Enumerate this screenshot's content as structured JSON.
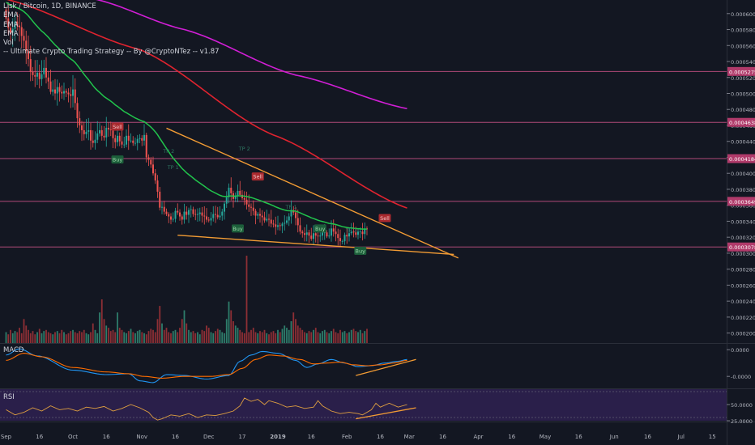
{
  "chart_data": {
    "type": "candlestick",
    "title": "Lisk / Bitcoin, 1D, BINANCE",
    "legend": [
      "EMA",
      "EMA",
      "EMA",
      "Vol",
      "-- Ultimate Crypto Trading Strategy -- By @CryptoNTez -- v1.87"
    ],
    "price_axis": {
      "ticks": [
        "0.0006000",
        "0.0005800",
        "0.0005600",
        "0.0005400",
        "0.0005200",
        "0.0005000",
        "0.0004800",
        "0.0004600",
        "0.0004400",
        "0.0004200",
        "0.0004000",
        "0.0003800",
        "0.0003600",
        "0.0003400",
        "0.0003200",
        "0.0003000",
        "0.0002800",
        "0.0002600",
        "0.0002400",
        "0.0002200",
        "0.0002000"
      ],
      "range": [
        0.0001875,
        0.000617
      ]
    },
    "horizontal_levels": [
      {
        "value": 0.0005275,
        "label": "0.0005275"
      },
      {
        "value": 0.0004638,
        "label": "0.0004638"
      },
      {
        "value": 0.0004184,
        "label": "0.0004184"
      },
      {
        "value": 0.0003649,
        "label": "0.0003649"
      },
      {
        "value": 0.0003078,
        "label": "0.0003078"
      }
    ],
    "x_axis": {
      "ticks": [
        "Sep",
        "16",
        "Oct",
        "16",
        "Nov",
        "16",
        "Dec",
        "17",
        "2019",
        "16",
        "Feb",
        "16",
        "Mar",
        "16",
        "Apr",
        "16",
        "May",
        "16",
        "Jun",
        "16",
        "Jul",
        "15"
      ],
      "tick_days": [
        0,
        15,
        30,
        45,
        61,
        76,
        91,
        106,
        122,
        137,
        153,
        168,
        181,
        196,
        212,
        227,
        242,
        257,
        273,
        288,
        303,
        317
      ]
    },
    "candles_close": [
      0.000594,
      0.000582,
      0.000576,
      0.000581,
      0.00059,
      0.000585,
      0.000583,
      0.000572,
      0.000566,
      0.000553,
      0.000543,
      0.000527,
      0.000523,
      0.000521,
      0.000526,
      0.000518,
      0.000524,
      0.000532,
      0.00052,
      0.000515,
      0.000502,
      0.000505,
      0.0005,
      0.000508,
      0.000502,
      0.0005,
      0.000503,
      0.000501,
      0.000499,
      0.000497,
      0.000505,
      0.000488,
      0.000469,
      0.00046,
      0.000454,
      0.000449,
      0.000452,
      0.000454,
      0.000441,
      0.000438,
      0.000442,
      0.00045,
      0.000454,
      0.000447,
      0.000445,
      0.000457,
      0.000455,
      0.000454,
      0.000444,
      0.000439,
      0.000447,
      0.00044,
      0.000436,
      0.000436,
      0.000447,
      0.000441,
      0.000441,
      0.000438,
      0.000438,
      0.000443,
      0.000444,
      0.000441,
      0.000448,
      0.00042,
      0.000417,
      0.000411,
      0.0004,
      0.000391,
      0.000377,
      0.000357,
      0.000358,
      0.000352,
      0.000349,
      0.000346,
      0.000342,
      0.000343,
      0.000353,
      0.000351,
      0.000346,
      0.000342,
      0.000352,
      0.000348,
      0.000354,
      0.000355,
      0.000349,
      0.000348,
      0.000349,
      0.000351,
      0.000347,
      0.000346,
      0.000342,
      0.000341,
      0.000344,
      0.000349,
      0.000348,
      0.000345,
      0.000347,
      0.000352,
      0.000362,
      0.00037,
      0.000382,
      0.000375,
      0.000368,
      0.000372,
      0.000378,
      0.000373,
      0.000369,
      0.000367,
      0.000361,
      0.000358,
      0.000357,
      0.000353,
      0.000347,
      0.000349,
      0.000347,
      0.000345,
      0.000341,
      0.000343,
      0.000342,
      0.000337,
      0.000336,
      0.000333,
      0.000335,
      0.000334,
      0.000337,
      0.000338,
      0.000341,
      0.000346,
      0.000354,
      0.000351,
      0.000344,
      0.000335,
      0.000327,
      0.000325,
      0.000323,
      0.000326,
      0.000322,
      0.000318,
      0.000325,
      0.000322,
      0.000321,
      0.000322,
      0.000326,
      0.000326,
      0.000321,
      0.000322,
      0.000331,
      0.000327,
      0.000324,
      0.000319,
      0.000315,
      0.000315,
      0.000323,
      0.000321,
      0.000325,
      0.000327,
      0.000326,
      0.000323,
      0.000327,
      0.000327,
      0.000324,
      0.000331,
      0.00033
    ],
    "ema_green_start": 0.000615,
    "ema_red": {
      "points": [
        [
          0,
          0.000618
        ],
        [
          60,
          0.000555
        ],
        [
          120,
          0.000448
        ],
        [
          180,
          0.0003565
        ]
      ]
    },
    "ema_magenta": {
      "points": [
        [
          40,
          0.000618
        ],
        [
          80,
          0.00058
        ],
        [
          130,
          0.000523
        ],
        [
          180,
          0.000481
        ]
      ]
    },
    "signals": [
      {
        "label": "Sell",
        "day": 50,
        "price": 0.000458,
        "side": "sell"
      },
      {
        "label": "Buy",
        "day": 50,
        "price": 0.0004168,
        "side": "buy"
      },
      {
        "label": "Sell",
        "day": 113,
        "price": 0.0003955,
        "side": "sell"
      },
      {
        "label": "Buy",
        "day": 104,
        "price": 0.0003305,
        "side": "buy"
      },
      {
        "label": "Buy",
        "day": 141,
        "price": 0.0003305,
        "side": "buy"
      },
      {
        "label": "Sell",
        "day": 170,
        "price": 0.0003435,
        "side": "sell"
      },
      {
        "label": "Buy",
        "day": 159,
        "price": 0.0003025,
        "side": "buy"
      }
    ],
    "tp_labels": [
      {
        "label": "TP 2",
        "day": 107,
        "price": 0.0004285
      },
      {
        "label": "TP 1",
        "day": 128,
        "price": 0.0003555
      },
      {
        "label": "TP 1",
        "day": 155,
        "price": 0.000327
      },
      {
        "label": "TP 2",
        "day": 73,
        "price": 0.0004255
      },
      {
        "label": "TP 1",
        "day": 75,
        "price": 0.0004055
      }
    ],
    "trendlines": [
      {
        "from": [
          72,
          0.0004565
        ],
        "to": [
          203,
          0.000294
        ]
      },
      {
        "from": [
          77,
          0.0003225
        ],
        "to": [
          201,
          0.0002985
        ]
      }
    ],
    "volume": {
      "values": [
        10,
        8,
        12,
        9,
        11,
        10,
        14,
        9,
        22,
        16,
        12,
        9,
        11,
        8,
        10,
        13,
        9,
        11,
        12,
        10,
        9,
        8,
        10,
        11,
        9,
        12,
        10,
        8,
        9,
        11,
        12,
        10,
        9,
        11,
        10,
        12,
        9,
        8,
        10,
        18,
        12,
        9,
        28,
        40,
        22,
        16,
        14,
        11,
        12,
        10,
        28,
        14,
        12,
        10,
        9,
        11,
        13,
        10,
        9,
        11,
        12,
        10,
        9,
        8,
        11,
        13,
        12,
        10,
        22,
        34,
        18,
        12,
        14,
        10,
        9,
        11,
        12,
        10,
        14,
        22,
        30,
        18,
        12,
        10,
        11,
        9,
        10,
        8,
        12,
        11,
        16,
        14,
        10,
        9,
        11,
        13,
        12,
        10,
        9,
        22,
        38,
        30,
        20,
        16,
        14,
        12,
        10,
        9,
        11,
        10,
        12,
        14,
        10,
        9,
        11,
        10,
        12,
        9,
        8,
        10,
        11,
        9,
        12,
        10,
        13,
        16,
        14,
        12,
        20,
        28,
        22,
        16,
        14,
        12,
        10,
        9,
        11,
        10,
        12,
        14,
        10,
        9,
        11,
        12,
        10,
        9,
        11,
        13,
        10,
        9,
        12,
        10,
        11,
        9,
        10,
        12,
        13,
        11,
        10,
        12,
        9,
        11,
        13
      ],
      "spike_day": 108,
      "spike_value": 80
    },
    "macd": {
      "label": "MACD",
      "ticks": [
        "0.0000",
        "-0.0000"
      ],
      "macd_line_key": [
        [
          0,
          0.6
        ],
        [
          6,
          0.95
        ],
        [
          14,
          0.55
        ],
        [
          30,
          -0.25
        ],
        [
          45,
          -0.5
        ],
        [
          55,
          -0.45
        ],
        [
          60,
          -0.85
        ],
        [
          66,
          -0.95
        ],
        [
          72,
          -0.5
        ],
        [
          80,
          -0.55
        ],
        [
          90,
          -0.75
        ],
        [
          100,
          -0.55
        ],
        [
          105,
          0.25
        ],
        [
          110,
          0.6
        ],
        [
          115,
          0.8
        ],
        [
          122,
          0.7
        ],
        [
          130,
          0.3
        ],
        [
          135,
          -0.1
        ],
        [
          140,
          0.1
        ],
        [
          146,
          0.35
        ],
        [
          152,
          0.15
        ],
        [
          158,
          -0.05
        ],
        [
          164,
          0.0
        ],
        [
          170,
          0.15
        ],
        [
          176,
          0.25
        ],
        [
          180,
          0.35
        ]
      ],
      "signal_key": [
        [
          0,
          0.3
        ],
        [
          8,
          0.7
        ],
        [
          16,
          0.5
        ],
        [
          30,
          -0.1
        ],
        [
          45,
          -0.35
        ],
        [
          55,
          -0.45
        ],
        [
          62,
          -0.6
        ],
        [
          70,
          -0.7
        ],
        [
          80,
          -0.6
        ],
        [
          92,
          -0.6
        ],
        [
          100,
          -0.5
        ],
        [
          106,
          -0.15
        ],
        [
          112,
          0.35
        ],
        [
          118,
          0.6
        ],
        [
          124,
          0.55
        ],
        [
          132,
          0.35
        ],
        [
          138,
          0.1
        ],
        [
          144,
          0.15
        ],
        [
          150,
          0.2
        ],
        [
          156,
          0.05
        ],
        [
          162,
          0.0
        ],
        [
          168,
          0.05
        ],
        [
          174,
          0.15
        ],
        [
          180,
          0.3
        ]
      ]
    },
    "rsi": {
      "label": "RSI",
      "ticks": [
        "50.0000",
        "25.0000"
      ],
      "key": [
        [
          0,
          42
        ],
        [
          4,
          34
        ],
        [
          8,
          38
        ],
        [
          12,
          45
        ],
        [
          16,
          40
        ],
        [
          20,
          48
        ],
        [
          24,
          42
        ],
        [
          28,
          44
        ],
        [
          32,
          40
        ],
        [
          36,
          46
        ],
        [
          40,
          44
        ],
        [
          44,
          47
        ],
        [
          48,
          40
        ],
        [
          52,
          44
        ],
        [
          56,
          50
        ],
        [
          60,
          45
        ],
        [
          64,
          38
        ],
        [
          66,
          30
        ],
        [
          68,
          26
        ],
        [
          70,
          28
        ],
        [
          74,
          34
        ],
        [
          78,
          32
        ],
        [
          82,
          36
        ],
        [
          86,
          30
        ],
        [
          90,
          34
        ],
        [
          94,
          33
        ],
        [
          98,
          36
        ],
        [
          102,
          40
        ],
        [
          105,
          48
        ],
        [
          107,
          60
        ],
        [
          110,
          55
        ],
        [
          113,
          58
        ],
        [
          116,
          50
        ],
        [
          118,
          56
        ],
        [
          122,
          52
        ],
        [
          126,
          46
        ],
        [
          130,
          48
        ],
        [
          134,
          44
        ],
        [
          138,
          46
        ],
        [
          140,
          56
        ],
        [
          142,
          48
        ],
        [
          146,
          40
        ],
        [
          150,
          36
        ],
        [
          154,
          38
        ],
        [
          158,
          36
        ],
        [
          160,
          34
        ],
        [
          164,
          42
        ],
        [
          166,
          52
        ],
        [
          168,
          46
        ],
        [
          172,
          52
        ],
        [
          176,
          46
        ],
        [
          180,
          50
        ]
      ]
    }
  }
}
